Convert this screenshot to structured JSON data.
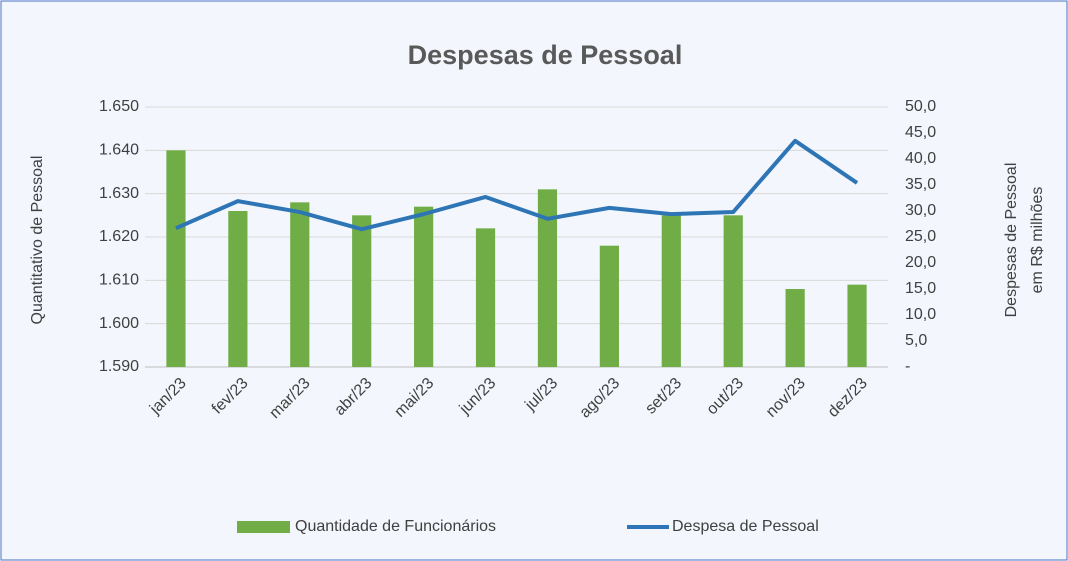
{
  "chart_data": {
    "type": "bar",
    "title": "Despesas de Pessoal",
    "y_label": "Quantitativo de Pessoal",
    "y2_label": [
      "Despesas de Pessoal",
      "em R$ milhões"
    ],
    "categories": [
      "jan/23",
      "fev/23",
      "mar/23",
      "abr/23",
      "mai/23",
      "jun/23",
      "jul/23",
      "ago/23",
      "set/23",
      "out/23",
      "nov/23",
      "dez/23"
    ],
    "series": [
      {
        "name": "Quantidade de Funcionários",
        "type": "bar",
        "color": "#70ad47",
        "axis": "y",
        "values": [
          1640,
          1626,
          1628,
          1625,
          1627,
          1622,
          1631,
          1618,
          1625,
          1625,
          1608,
          1609
        ]
      },
      {
        "name": "Despesa de Pessoal",
        "type": "line",
        "color": "#2e75b6",
        "axis": "y2",
        "values": [
          26.7,
          31.9,
          29.8,
          26.5,
          29.4,
          32.7,
          28.5,
          30.6,
          29.4,
          29.8,
          43.5,
          35.4
        ]
      }
    ],
    "ylim": [
      1590,
      1650
    ],
    "yticks": [
      {
        "value": 1590,
        "label": "1.590"
      },
      {
        "value": 1600,
        "label": "1.600"
      },
      {
        "value": 1610,
        "label": "1.610"
      },
      {
        "value": 1620,
        "label": "1.620"
      },
      {
        "value": 1630,
        "label": "1.630"
      },
      {
        "value": 1640,
        "label": "1.640"
      },
      {
        "value": 1650,
        "label": "1.650"
      }
    ],
    "y2lim": [
      0,
      50
    ],
    "y2ticks": [
      {
        "value": 0,
        "label": "-"
      },
      {
        "value": 5,
        "label": "5,0"
      },
      {
        "value": 10,
        "label": "10,0"
      },
      {
        "value": 15,
        "label": "15,0"
      },
      {
        "value": 20,
        "label": "20,0"
      },
      {
        "value": 25,
        "label": "25,0"
      },
      {
        "value": 30,
        "label": "30,0"
      },
      {
        "value": 35,
        "label": "35,0"
      },
      {
        "value": 40,
        "label": "40,0"
      },
      {
        "value": 45,
        "label": "45,0"
      },
      {
        "value": 50,
        "label": "50,0"
      }
    ],
    "grid": true,
    "legend": "bottom"
  }
}
